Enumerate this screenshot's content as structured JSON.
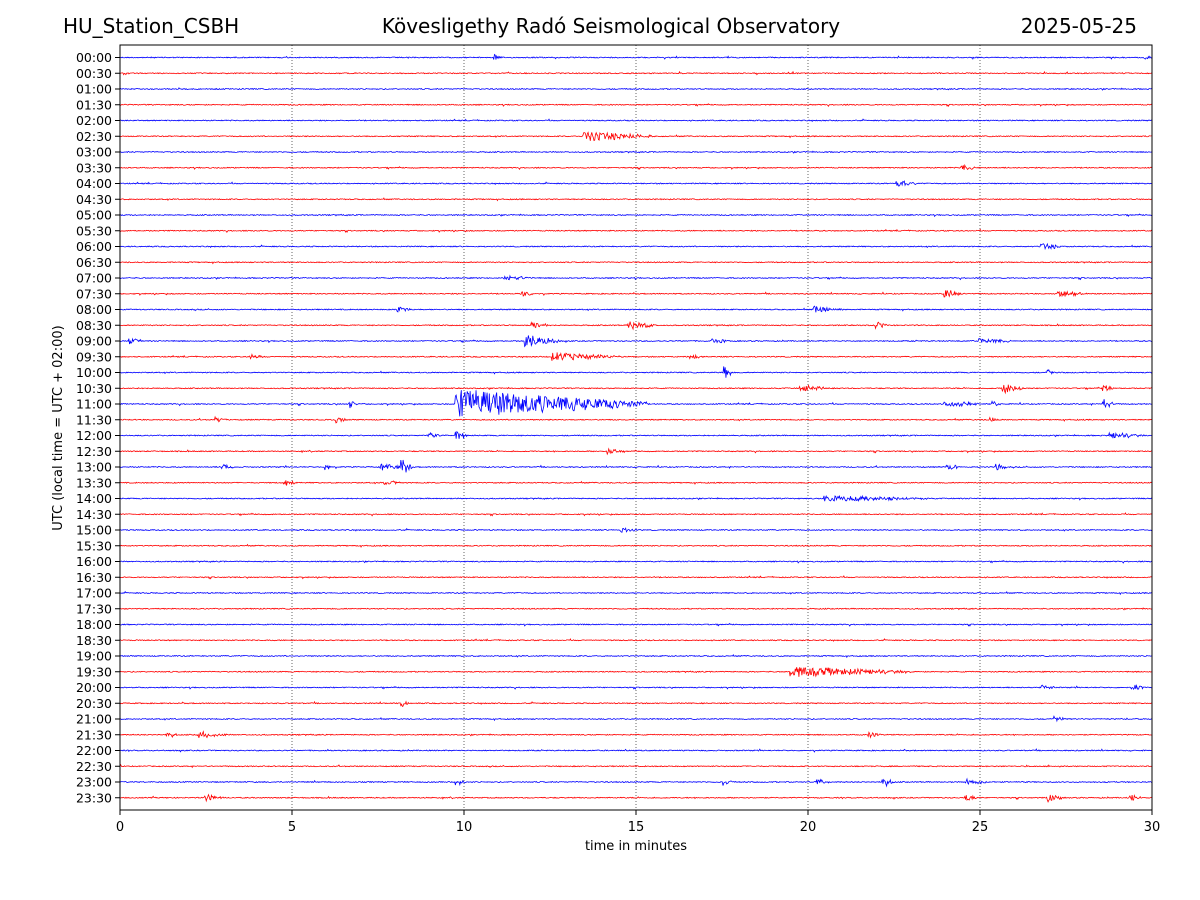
{
  "header": {
    "station": "HU_Station_CSBH",
    "observatory": "Kövesligethy Radó Seismological Observatory",
    "date": "2025-05-25"
  },
  "chart_data": {
    "type": "line",
    "title": "Kövesligethy Radó Seismological Observatory",
    "xlabel": "time in minutes",
    "ylabel": "UTC (local time = UTC + 02:00)",
    "xlim": [
      0,
      30
    ],
    "xticks": [
      0,
      5,
      10,
      15,
      20,
      25,
      30
    ],
    "grid": "vertical dotted",
    "colors": [
      "#0000ff",
      "#ff0000"
    ],
    "traces": [
      {
        "label": "00:00",
        "events": [
          {
            "t": 29.8,
            "amp": 0.4,
            "dur": 0.2
          },
          {
            "t": 10.9,
            "amp": 0.3,
            "dur": 0.2
          }
        ]
      },
      {
        "label": "00:30",
        "events": []
      },
      {
        "label": "01:00",
        "events": []
      },
      {
        "label": "01:30",
        "events": []
      },
      {
        "label": "02:00",
        "events": []
      },
      {
        "label": "02:30",
        "events": [
          {
            "t": 13.5,
            "amp": 0.5,
            "dur": 2.0
          }
        ]
      },
      {
        "label": "03:00",
        "events": []
      },
      {
        "label": "03:30",
        "events": [
          {
            "t": 24.5,
            "amp": 0.3,
            "dur": 0.4
          }
        ]
      },
      {
        "label": "04:00",
        "events": [
          {
            "t": 22.6,
            "amp": 0.3,
            "dur": 0.6
          }
        ]
      },
      {
        "label": "04:30",
        "events": []
      },
      {
        "label": "05:00",
        "events": []
      },
      {
        "label": "05:30",
        "events": []
      },
      {
        "label": "06:00",
        "events": [
          {
            "t": 26.8,
            "amp": 0.35,
            "dur": 0.6
          }
        ]
      },
      {
        "label": "06:30",
        "events": []
      },
      {
        "label": "07:00",
        "events": [
          {
            "t": 11.2,
            "amp": 0.25,
            "dur": 0.8
          }
        ]
      },
      {
        "label": "07:30",
        "events": [
          {
            "t": 11.7,
            "amp": 0.3,
            "dur": 0.4
          },
          {
            "t": 24.0,
            "amp": 0.4,
            "dur": 0.5
          },
          {
            "t": 27.3,
            "amp": 0.3,
            "dur": 0.8
          }
        ]
      },
      {
        "label": "08:00",
        "events": [
          {
            "t": 8.1,
            "amp": 0.3,
            "dur": 0.4
          },
          {
            "t": 20.2,
            "amp": 0.3,
            "dur": 0.8
          }
        ]
      },
      {
        "label": "08:30",
        "events": [
          {
            "t": 12.0,
            "amp": 0.35,
            "dur": 0.5
          },
          {
            "t": 14.8,
            "amp": 0.4,
            "dur": 0.8
          },
          {
            "t": 22.0,
            "amp": 0.3,
            "dur": 0.4
          }
        ]
      },
      {
        "label": "09:00",
        "events": [
          {
            "t": 0.3,
            "amp": 0.3,
            "dur": 0.3
          },
          {
            "t": 11.8,
            "amp": 0.6,
            "dur": 1.0
          },
          {
            "t": 17.2,
            "amp": 0.3,
            "dur": 0.6
          },
          {
            "t": 25.0,
            "amp": 0.3,
            "dur": 1.0
          }
        ]
      },
      {
        "label": "09:30",
        "events": [
          {
            "t": 3.8,
            "amp": 0.3,
            "dur": 0.4
          },
          {
            "t": 12.6,
            "amp": 0.4,
            "dur": 2.0
          },
          {
            "t": 16.6,
            "amp": 0.3,
            "dur": 0.3
          }
        ]
      },
      {
        "label": "10:00",
        "events": [
          {
            "t": 17.6,
            "amp": 0.6,
            "dur": 0.2
          },
          {
            "t": 27.0,
            "amp": 0.3,
            "dur": 0.2
          }
        ]
      },
      {
        "label": "10:30",
        "events": [
          {
            "t": 19.8,
            "amp": 0.3,
            "dur": 1.0
          },
          {
            "t": 25.7,
            "amp": 0.45,
            "dur": 0.6
          },
          {
            "t": 28.6,
            "amp": 0.3,
            "dur": 0.3
          }
        ]
      },
      {
        "label": "11:00",
        "events": [
          {
            "t": 6.7,
            "amp": 0.4,
            "dur": 0.2
          },
          {
            "t": 9.8,
            "amp": 1.4,
            "dur": 5.5
          },
          {
            "t": 24.0,
            "amp": 0.35,
            "dur": 1.0
          },
          {
            "t": 25.4,
            "amp": 0.3,
            "dur": 0.2
          },
          {
            "t": 28.6,
            "amp": 0.45,
            "dur": 0.3
          }
        ]
      },
      {
        "label": "11:30",
        "events": [
          {
            "t": 2.8,
            "amp": 0.3,
            "dur": 0.3
          },
          {
            "t": 6.3,
            "amp": 0.3,
            "dur": 0.3
          },
          {
            "t": 25.3,
            "amp": 0.4,
            "dur": 0.2
          }
        ]
      },
      {
        "label": "12:00",
        "events": [
          {
            "t": 9.0,
            "amp": 0.3,
            "dur": 0.3
          },
          {
            "t": 9.8,
            "amp": 0.6,
            "dur": 0.3
          },
          {
            "t": 28.8,
            "amp": 0.3,
            "dur": 1.0
          }
        ]
      },
      {
        "label": "12:30",
        "events": [
          {
            "t": 14.2,
            "amp": 0.3,
            "dur": 0.4
          }
        ]
      },
      {
        "label": "13:00",
        "events": [
          {
            "t": 3.0,
            "amp": 0.3,
            "dur": 0.3
          },
          {
            "t": 6.0,
            "amp": 0.35,
            "dur": 0.2
          },
          {
            "t": 7.6,
            "amp": 0.4,
            "dur": 0.6
          },
          {
            "t": 8.2,
            "amp": 0.8,
            "dur": 0.3
          },
          {
            "t": 24.0,
            "amp": 0.35,
            "dur": 0.4
          },
          {
            "t": 25.5,
            "amp": 0.3,
            "dur": 0.3
          }
        ]
      },
      {
        "label": "13:30",
        "events": [
          {
            "t": 4.8,
            "amp": 0.35,
            "dur": 0.3
          },
          {
            "t": 7.7,
            "amp": 0.3,
            "dur": 0.5
          }
        ]
      },
      {
        "label": "14:00",
        "events": [
          {
            "t": 20.5,
            "amp": 0.3,
            "dur": 3.0
          }
        ]
      },
      {
        "label": "14:30",
        "events": []
      },
      {
        "label": "15:00",
        "events": [
          {
            "t": 14.6,
            "amp": 0.3,
            "dur": 0.4
          }
        ]
      },
      {
        "label": "15:30",
        "events": []
      },
      {
        "label": "16:00",
        "events": []
      },
      {
        "label": "16:30",
        "events": []
      },
      {
        "label": "17:00",
        "events": []
      },
      {
        "label": "17:30",
        "events": []
      },
      {
        "label": "18:00",
        "events": []
      },
      {
        "label": "18:30",
        "events": []
      },
      {
        "label": "19:00",
        "events": []
      },
      {
        "label": "19:30",
        "events": [
          {
            "t": 19.5,
            "amp": 0.5,
            "dur": 3.5
          }
        ]
      },
      {
        "label": "20:00",
        "events": [
          {
            "t": 26.8,
            "amp": 0.3,
            "dur": 0.4
          },
          {
            "t": 29.5,
            "amp": 0.3,
            "dur": 0.3
          }
        ]
      },
      {
        "label": "20:30",
        "events": [
          {
            "t": 8.2,
            "amp": 0.3,
            "dur": 0.2
          }
        ]
      },
      {
        "label": "21:00",
        "events": [
          {
            "t": 27.2,
            "amp": 0.3,
            "dur": 0.3
          }
        ]
      },
      {
        "label": "21:30",
        "events": [
          {
            "t": 1.4,
            "amp": 0.3,
            "dur": 0.3
          },
          {
            "t": 2.3,
            "amp": 0.35,
            "dur": 0.8
          },
          {
            "t": 21.8,
            "amp": 0.3,
            "dur": 0.3
          }
        ]
      },
      {
        "label": "22:00",
        "events": []
      },
      {
        "label": "22:30",
        "events": []
      },
      {
        "label": "23:00",
        "events": [
          {
            "t": 9.8,
            "amp": 0.4,
            "dur": 0.3
          },
          {
            "t": 17.5,
            "amp": 0.4,
            "dur": 0.3
          },
          {
            "t": 20.3,
            "amp": 0.3,
            "dur": 0.3
          },
          {
            "t": 22.2,
            "amp": 0.5,
            "dur": 0.3
          },
          {
            "t": 24.6,
            "amp": 0.3,
            "dur": 0.6
          }
        ]
      },
      {
        "label": "23:30",
        "events": [
          {
            "t": 2.5,
            "amp": 0.3,
            "dur": 0.5
          },
          {
            "t": 24.6,
            "amp": 0.3,
            "dur": 0.3
          },
          {
            "t": 27.0,
            "amp": 0.4,
            "dur": 0.4
          },
          {
            "t": 29.4,
            "amp": 0.35,
            "dur": 0.3
          }
        ]
      }
    ]
  }
}
